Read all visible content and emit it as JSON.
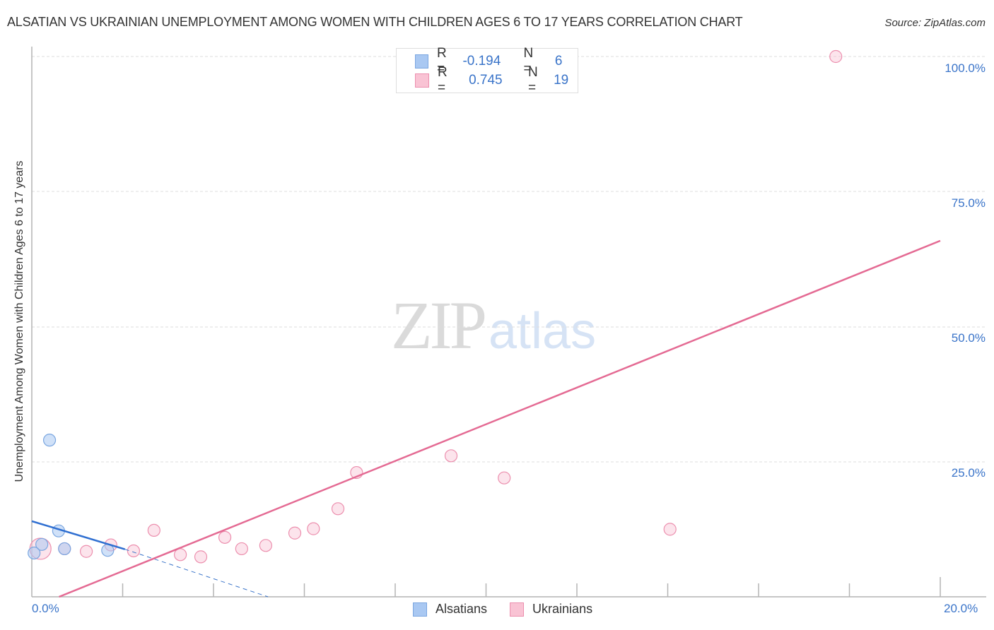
{
  "header": {
    "title": "ALSATIAN VS UKRAINIAN UNEMPLOYMENT AMONG WOMEN WITH CHILDREN AGES 6 TO 17 YEARS CORRELATION CHART",
    "source": "Source: ZipAtlas.com"
  },
  "watermark": {
    "zip": "ZIP",
    "atlas": "atlas"
  },
  "legend": {
    "rows": [
      {
        "r_label": "R =",
        "r_value": "-0.194",
        "n_label": "N =",
        "n_value": "6",
        "color": "#a9c8f2",
        "border": "#7aa6e0"
      },
      {
        "r_label": "R =",
        "r_value": "0.745",
        "n_label": "N =",
        "n_value": "19",
        "color": "#f9c3d4",
        "border": "#ec8fae"
      }
    ]
  },
  "bottom_legend": {
    "items": [
      {
        "label": "Alsatians",
        "color": "#a9c8f2",
        "border": "#7aa6e0"
      },
      {
        "label": "Ukrainians",
        "color": "#f9c3d4",
        "border": "#ec8fae"
      }
    ]
  },
  "axes": {
    "y_ticks": [
      "100.0%",
      "75.0%",
      "50.0%",
      "25.0%"
    ],
    "x_ticks": [
      "0.0%",
      "20.0%"
    ],
    "ylabel": "Unemployment Among Women with Children Ages 6 to 17 years"
  },
  "chart_data": {
    "type": "scatter",
    "title": "ALSATIAN VS UKRAINIAN UNEMPLOYMENT AMONG WOMEN WITH CHILDREN AGES 6 TO 17 YEARS CORRELATION CHART",
    "xlabel": "",
    "ylabel": "Unemployment Among Women with Children Ages 6 to 17 years",
    "xlim": [
      0,
      20
    ],
    "ylim": [
      0,
      100
    ],
    "x_ticks": [
      "0.0%",
      "20.0%"
    ],
    "y_ticks": [
      "25.0%",
      "50.0%",
      "75.0%",
      "100.0%"
    ],
    "grid": true,
    "legend_position": "top-center and bottom",
    "series": [
      {
        "name": "Alsatians",
        "color": "#a9c8f2",
        "R": -0.194,
        "N": 6,
        "points": [
          {
            "x": 0.39,
            "y": 29.0
          },
          {
            "x": 0.59,
            "y": 12.2
          },
          {
            "x": 0.22,
            "y": 9.7
          },
          {
            "x": 0.72,
            "y": 8.9
          },
          {
            "x": 1.67,
            "y": 8.6
          },
          {
            "x": 0.05,
            "y": 8.1
          }
        ],
        "trendline": {
          "x0": 0.0,
          "y0": 14.0,
          "x1": 2.05,
          "y1": 8.8,
          "dashed_extension_to": {
            "x": 5.2,
            "y": 0.0
          }
        }
      },
      {
        "name": "Ukrainians",
        "color": "#f9c3d4",
        "R": 0.745,
        "N": 19,
        "points": [
          {
            "x": 0.19,
            "y": 8.9,
            "large": true
          },
          {
            "x": 0.72,
            "y": 8.9
          },
          {
            "x": 1.2,
            "y": 8.4
          },
          {
            "x": 1.74,
            "y": 9.6
          },
          {
            "x": 2.24,
            "y": 8.5
          },
          {
            "x": 2.69,
            "y": 12.3
          },
          {
            "x": 3.27,
            "y": 7.8
          },
          {
            "x": 3.72,
            "y": 7.4
          },
          {
            "x": 4.25,
            "y": 11.0
          },
          {
            "x": 4.62,
            "y": 8.9
          },
          {
            "x": 5.15,
            "y": 9.5
          },
          {
            "x": 5.79,
            "y": 11.8
          },
          {
            "x": 6.2,
            "y": 12.6
          },
          {
            "x": 6.74,
            "y": 16.3
          },
          {
            "x": 7.15,
            "y": 23.0
          },
          {
            "x": 9.23,
            "y": 26.1
          },
          {
            "x": 10.4,
            "y": 22.0
          },
          {
            "x": 14.05,
            "y": 12.5
          },
          {
            "x": 17.7,
            "y": 100.0
          }
        ],
        "trendline": {
          "x0": 0.6,
          "y0": 0.0,
          "x1": 20.0,
          "y1": 65.9
        }
      }
    ]
  }
}
